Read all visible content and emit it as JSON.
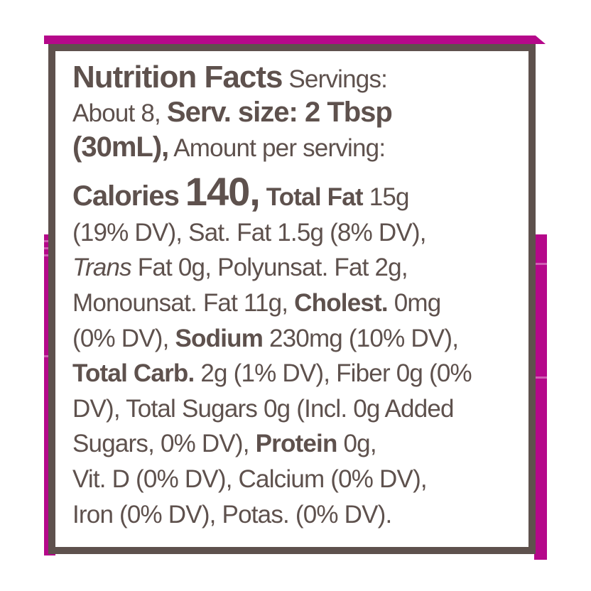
{
  "colors": {
    "accent": "#b5088a",
    "text": "#5e514d",
    "border": "#5e514d"
  },
  "label": {
    "title": "Nutrition Facts",
    "servings": "Servings:",
    "servings_value": "About 8,",
    "serving_size_label": "Serv. size: 2 Tbsp",
    "serving_size_ml": "(30mL),",
    "amount_per_serving": "Amount per serving:",
    "calories_label": "Calories",
    "calories_value": "140,",
    "total_fat_label": "Total Fat",
    "total_fat_value": "15g",
    "line5": "(19% DV), Sat. Fat 1.5g (8% DV),",
    "trans_label": "Trans",
    "trans_rest": " Fat 0g, Polyunsat. Fat 2g,",
    "mono": "Monounsat. Fat 11g, ",
    "cholest_label": "Cholest.",
    "cholest_value": " 0mg",
    "cholest_dv": "(0% DV), ",
    "sodium_label": "Sodium",
    "sodium_value": " 230mg (10% DV),",
    "carb_label": "Total Carb.",
    "carb_value": " 2g (1% DV), Fiber 0g (0%",
    "line10": "DV), Total Sugars 0g (Incl. 0g Added",
    "line11_pre": "Sugars, 0% DV), ",
    "protein_label": "Protein",
    "protein_value": " 0g,",
    "line12": "Vit. D (0% DV), Calcium (0% DV),",
    "line13": "Iron (0% DV), Potas. (0% DV)."
  }
}
